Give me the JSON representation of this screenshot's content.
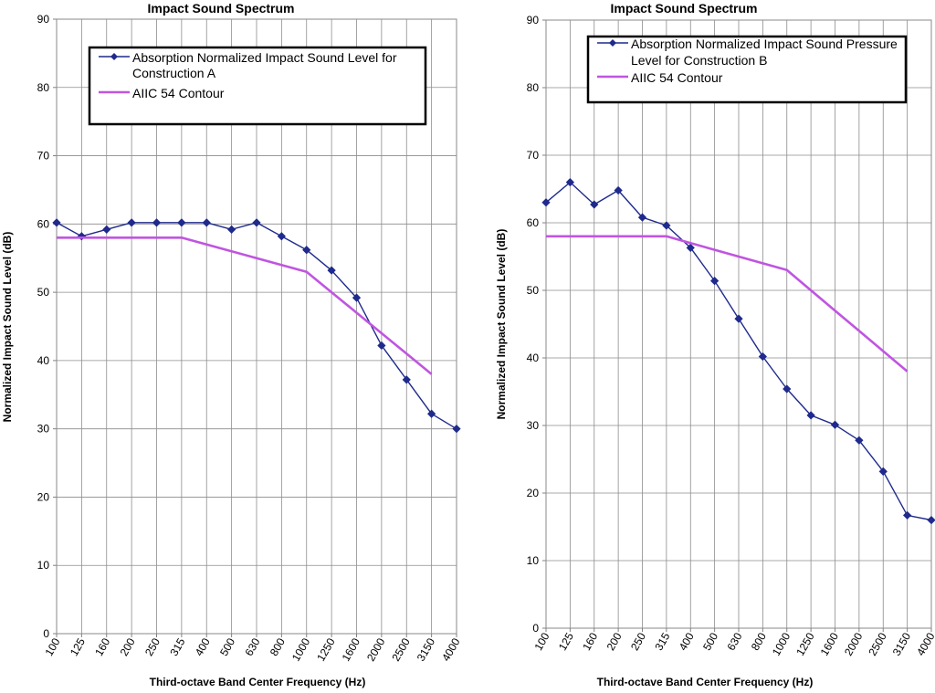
{
  "chart_data": [
    {
      "type": "line",
      "title": "Impact Sound Spectrum",
      "xlabel": "Third-octave Band Center Frequency (Hz)",
      "ylabel": "Normalized Impact Sound Level (dB)",
      "ylim": [
        0,
        90
      ],
      "yticks": [
        "0",
        "10",
        "20",
        "30",
        "40",
        "50",
        "60",
        "70",
        "80",
        "90"
      ],
      "categories": [
        "100",
        "125",
        "160",
        "200",
        "250",
        "315",
        "400",
        "500",
        "630",
        "800",
        "1000",
        "1250",
        "1600",
        "2000",
        "2500",
        "3150",
        "4000"
      ],
      "grid": true,
      "legend_position": "top",
      "series": [
        {
          "name": "Absorption Normalized Impact Sound Level for Construction A",
          "legend_lines": [
            "Absorption Normalized Impact Sound Level for",
            "Construction A"
          ],
          "color": "#1f2a8c",
          "marker": "diamond",
          "values": [
            60.2,
            58.2,
            59.2,
            60.2,
            60.2,
            60.2,
            60.2,
            59.2,
            60.2,
            58.2,
            56.2,
            53.2,
            49.2,
            42.2,
            37.2,
            32.2,
            30.0
          ]
        },
        {
          "name": "AIIC 54 Contour",
          "legend_lines": [
            "AIIC 54 Contour"
          ],
          "color": "#c055e0",
          "marker": "none",
          "values": [
            58,
            58,
            58,
            58,
            58,
            58,
            57,
            56,
            55,
            54,
            53,
            50,
            47,
            44,
            41,
            38,
            null
          ]
        }
      ]
    },
    {
      "type": "line",
      "title": "Impact Sound Spectrum",
      "xlabel": "Third-octave Band Center Frequency (Hz)",
      "ylabel": "Normalized Impact Sound Level (dB)",
      "ylim": [
        0,
        90
      ],
      "yticks": [
        "0",
        "10",
        "20",
        "30",
        "40",
        "50",
        "60",
        "70",
        "80",
        "90"
      ],
      "categories": [
        "100",
        "125",
        "160",
        "200",
        "250",
        "315",
        "400",
        "500",
        "630",
        "800",
        "1000",
        "1250",
        "1600",
        "2000",
        "2500",
        "3150",
        "4000"
      ],
      "grid": true,
      "legend_position": "top",
      "series": [
        {
          "name": "Absorption Normalized Impact Sound Pressure Level for Construction B",
          "legend_lines": [
            "Absorption Normalized Impact Sound Pressure",
            "Level for Construction B"
          ],
          "color": "#1f2a8c",
          "marker": "diamond",
          "values": [
            63.0,
            66.0,
            62.7,
            64.8,
            60.8,
            59.6,
            56.3,
            51.4,
            45.8,
            40.2,
            35.4,
            31.5,
            30.1,
            27.8,
            23.2,
            16.7,
            16.0
          ]
        },
        {
          "name": "AIIC 54 Contour",
          "legend_lines": [
            "AIIC 54 Contour"
          ],
          "color": "#c055e0",
          "marker": "none",
          "values": [
            58,
            58,
            58,
            58,
            58,
            58,
            57,
            56,
            55,
            54,
            53,
            50,
            47,
            44,
            41,
            38,
            null
          ]
        }
      ]
    }
  ]
}
